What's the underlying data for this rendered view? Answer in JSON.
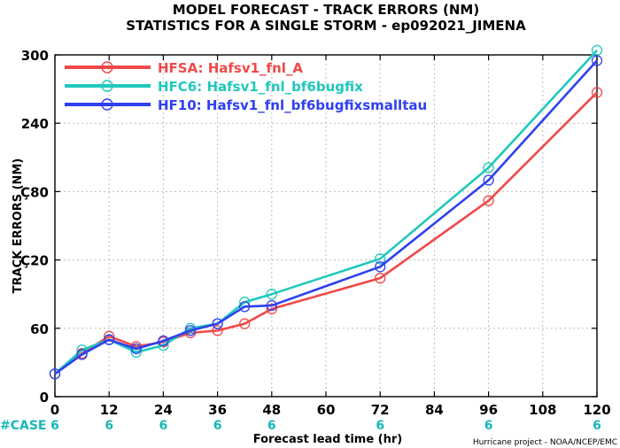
{
  "title_line1": "MODEL FORECAST - TRACK ERRORS (NM)",
  "title_line2": "STATISTICS FOR A SINGLE STORM - ep092021_JIMENA",
  "credit": "Hurricane project - NOAA/NCEP/EMC",
  "case_label": "#CASE",
  "case_color": "#17b8b8",
  "chart_data": {
    "type": "line",
    "xlabel": "Forecast lead time (hr)",
    "ylabel": "TRACK ERRORS (NM)",
    "xlim": [
      0,
      120
    ],
    "ylim": [
      0,
      300
    ],
    "xticks": [
      0,
      12,
      24,
      36,
      48,
      60,
      72,
      84,
      96,
      108,
      120
    ],
    "xtick_labels": [
      "0",
      "12",
      "24",
      "36",
      "48",
      "60",
      "72",
      "84",
      "96",
      "108",
      "120"
    ],
    "yticks": [
      0,
      60,
      120,
      180,
      240,
      300
    ],
    "ytick_labels": [
      "0",
      "60",
      "120",
      "180",
      "240",
      "300"
    ],
    "ytick_display": [
      "0",
      "60",
      "Ç20",
      "Ç80",
      "240",
      "300"
    ],
    "grid": true,
    "legend_position": "top-left",
    "case_x": [
      0,
      12,
      24,
      36,
      48,
      72,
      96,
      120
    ],
    "case_counts": [
      "6",
      "6",
      "6",
      "6",
      "6",
      "6",
      "6",
      "6"
    ],
    "series": [
      {
        "name": "HFSA:  Hafsv1_fnl_A",
        "color": "#f04848",
        "x": [
          0,
          6,
          12,
          18,
          24,
          30,
          36,
          42,
          48,
          72,
          96,
          120
        ],
        "y": [
          20,
          38,
          53,
          44,
          48,
          56,
          58,
          64,
          77,
          104,
          172,
          267
        ]
      },
      {
        "name": "HFC6:  Hafsv1_fnl_bf6bugfix",
        "color": "#1fc8bc",
        "x": [
          0,
          6,
          12,
          18,
          24,
          30,
          36,
          42,
          48,
          72,
          96,
          120
        ],
        "y": [
          20,
          41,
          50,
          39,
          45,
          60,
          64,
          83,
          90,
          121,
          201,
          304
        ]
      },
      {
        "name": "HF10:  Hafsv1_fnl_bf6bugfixsmalltau",
        "color": "#2f40f0",
        "x": [
          0,
          6,
          12,
          18,
          24,
          30,
          36,
          42,
          48,
          72,
          96,
          120
        ],
        "y": [
          20,
          37,
          50,
          42,
          49,
          58,
          64,
          79,
          80,
          114,
          190,
          295
        ]
      }
    ]
  }
}
